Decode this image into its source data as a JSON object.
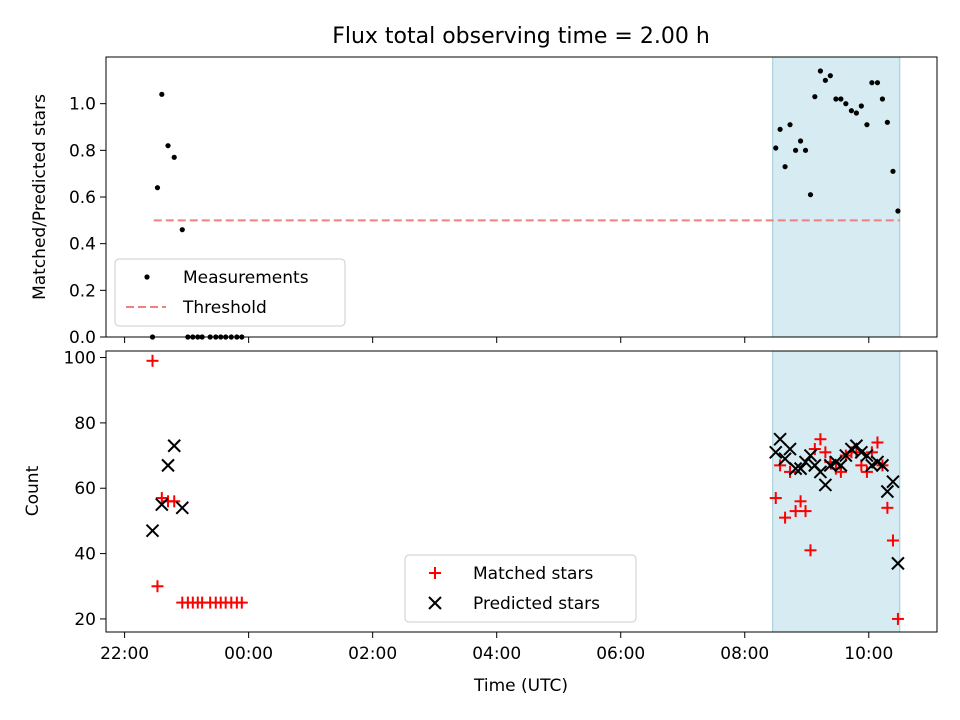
{
  "title": "Flux total observing time = 2.00 h",
  "chart_data": [
    {
      "type": "scatter",
      "panel": "top",
      "ylabel": "Matched/Predicted stars",
      "ylim": [
        0.0,
        1.2
      ],
      "yticks": [
        0.0,
        0.2,
        0.4,
        0.6,
        0.8,
        1.0
      ],
      "xlim_hours": [
        -2.3,
        11.1
      ],
      "shaded_interval_hours": [
        8.45,
        10.5
      ],
      "threshold": {
        "label": "Threshold",
        "y": 0.5,
        "x_range_hours": [
          -1.53,
          10.5
        ],
        "color": "#f08080"
      },
      "series": [
        {
          "name": "Measurements",
          "color": "#000000",
          "x": [
            -1.55,
            -1.47,
            -1.4,
            -1.3,
            -1.2,
            -1.07,
            -0.98,
            -0.9,
            -0.82,
            -0.75,
            -0.62,
            -0.53,
            -0.45,
            -0.37,
            -0.28,
            -0.19,
            -0.11,
            8.5,
            8.57,
            8.65,
            8.73,
            8.82,
            8.9,
            8.98,
            9.06,
            9.13,
            9.22,
            9.3,
            9.38,
            9.47,
            9.55,
            9.63,
            9.72,
            9.8,
            9.88,
            9.97,
            10.05,
            10.14,
            10.22,
            10.3,
            10.39,
            10.47
          ],
          "y": [
            0.0,
            0.64,
            1.04,
            0.82,
            0.77,
            0.46,
            0.0,
            0.0,
            0.0,
            0.0,
            0.0,
            0.0,
            0.0,
            0.0,
            0.0,
            0.0,
            0.0,
            0.81,
            0.89,
            0.73,
            0.91,
            0.8,
            0.84,
            0.8,
            0.61,
            1.03,
            1.14,
            1.1,
            1.12,
            1.02,
            1.02,
            1.0,
            0.97,
            0.96,
            0.99,
            0.91,
            1.09,
            1.09,
            1.02,
            0.92,
            0.71,
            0.54
          ]
        }
      ],
      "legend": {
        "position": "lower-left",
        "entries": [
          "Measurements",
          "Threshold"
        ]
      }
    },
    {
      "type": "scatter",
      "panel": "bottom",
      "xlabel": "Time (UTC)",
      "ylabel": "Count",
      "ylim": [
        16,
        102
      ],
      "yticks": [
        20,
        40,
        60,
        80,
        100
      ],
      "xlim_hours": [
        -2.3,
        11.1
      ],
      "xticks_hours": [
        -2,
        0,
        2,
        4,
        6,
        8,
        10
      ],
      "xtick_labels": [
        "22:00",
        "00:00",
        "02:00",
        "04:00",
        "06:00",
        "08:00",
        "10:00"
      ],
      "shaded_interval_hours": [
        8.45,
        10.5
      ],
      "series": [
        {
          "name": "Matched stars",
          "marker": "plus",
          "color": "#ff0000",
          "x": [
            -1.55,
            -1.47,
            -1.4,
            -1.3,
            -1.2,
            -1.07,
            -0.98,
            -0.9,
            -0.82,
            -0.75,
            -0.62,
            -0.53,
            -0.45,
            -0.37,
            -0.28,
            -0.19,
            -0.11,
            8.5,
            8.57,
            8.65,
            8.73,
            8.82,
            8.9,
            8.98,
            9.06,
            9.13,
            9.22,
            9.3,
            9.38,
            9.47,
            9.55,
            9.63,
            9.72,
            9.8,
            9.88,
            9.97,
            10.05,
            10.14,
            10.22,
            10.3,
            10.39,
            10.47
          ],
          "y": [
            99,
            30,
            57,
            56,
            56,
            25,
            25,
            25,
            25,
            25,
            25,
            25,
            25,
            25,
            25,
            25,
            25,
            57,
            67,
            51,
            65,
            53,
            56,
            53,
            41,
            72,
            75,
            71,
            68,
            66,
            65,
            70,
            71,
            71,
            67,
            65,
            71,
            74,
            67,
            54,
            44,
            20
          ]
        },
        {
          "name": "Predicted stars",
          "marker": "x",
          "color": "#000000",
          "x": [
            -1.55,
            -1.4,
            -1.3,
            -1.2,
            -1.07,
            8.5,
            8.57,
            8.65,
            8.73,
            8.82,
            8.9,
            8.98,
            9.06,
            9.13,
            9.22,
            9.3,
            9.38,
            9.47,
            9.55,
            9.63,
            9.72,
            9.8,
            9.88,
            9.97,
            10.05,
            10.14,
            10.22,
            10.3,
            10.39,
            10.47
          ],
          "y": [
            47,
            55,
            67,
            73,
            54,
            71,
            75,
            69,
            72,
            66,
            66,
            68,
            70,
            67,
            65,
            61,
            67,
            68,
            67,
            70,
            72,
            73,
            71,
            70,
            67,
            68,
            67,
            59,
            62,
            37
          ]
        }
      ],
      "legend": {
        "position": "lower-center",
        "entries": [
          "Matched stars",
          "Predicted stars"
        ]
      }
    }
  ]
}
